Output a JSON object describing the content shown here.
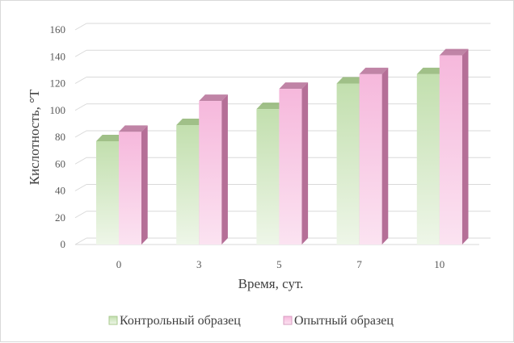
{
  "chart_data": {
    "type": "bar",
    "style": "3d-clustered-column",
    "categories": [
      "0",
      "3",
      "5",
      "7",
      "10"
    ],
    "series": [
      {
        "name": "Контрольный образец",
        "values": [
          77,
          89,
          101,
          120,
          127
        ],
        "color": "#c5e0b4",
        "colorDark": "#8fb573"
      },
      {
        "name": "Опытный образец",
        "values": [
          84,
          107,
          116,
          127,
          141
        ],
        "color": "#f7bfe0",
        "colorDark": "#b56f97"
      }
    ],
    "title": "",
    "xlabel": "Время, сут.",
    "ylabel": "Кислотность, °Т",
    "ylim": [
      0,
      160
    ],
    "yticks": [
      "0",
      "20",
      "40",
      "60",
      "80",
      "100",
      "120",
      "140",
      "160"
    ],
    "grid": true,
    "legend": "bottom"
  }
}
